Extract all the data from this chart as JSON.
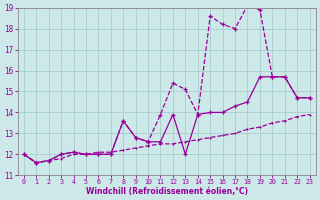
{
  "background_color": "#cce8e8",
  "grid_color": "#b0d0d0",
  "line_color": "#990099",
  "xlabel": "Windchill (Refroidissement éolien,°C)",
  "xlabel_color": "#990099",
  "tick_color": "#990099",
  "xlim": [
    -0.5,
    23.5
  ],
  "ylim": [
    11,
    19
  ],
  "yticks": [
    11,
    12,
    13,
    14,
    15,
    16,
    17,
    18,
    19
  ],
  "xticks": [
    0,
    1,
    2,
    3,
    4,
    5,
    6,
    7,
    8,
    9,
    10,
    11,
    12,
    13,
    14,
    15,
    16,
    17,
    18,
    19,
    20,
    21,
    22,
    23
  ],
  "line_bottom_x": [
    0,
    1,
    2,
    3,
    4,
    5,
    6,
    7,
    8,
    9,
    10,
    11,
    12,
    13,
    14,
    15,
    16,
    17,
    18,
    19,
    20,
    21,
    22,
    23
  ],
  "line_bottom_y": [
    12.0,
    11.6,
    11.7,
    11.8,
    12.0,
    12.0,
    12.1,
    12.1,
    12.2,
    12.3,
    12.4,
    12.5,
    12.5,
    12.6,
    12.7,
    12.8,
    12.9,
    13.0,
    13.2,
    13.3,
    13.5,
    13.6,
    13.8,
    13.9
  ],
  "line_mid_x": [
    0,
    1,
    2,
    3,
    4,
    5,
    6,
    7,
    8,
    9,
    10,
    11,
    12,
    13,
    14,
    15,
    16,
    17,
    18,
    19,
    20,
    21,
    22,
    23
  ],
  "line_mid_y": [
    12.0,
    11.6,
    11.7,
    12.0,
    12.1,
    12.0,
    12.0,
    12.0,
    13.6,
    12.8,
    12.6,
    12.6,
    13.9,
    12.0,
    13.9,
    14.0,
    14.0,
    14.3,
    14.5,
    15.7,
    15.7,
    15.7,
    14.7,
    14.7
  ],
  "line_top_x": [
    0,
    1,
    2,
    3,
    4,
    5,
    6,
    7,
    8,
    9,
    10,
    11,
    12,
    13,
    14,
    15,
    16,
    17,
    18,
    19,
    20,
    21,
    22,
    23
  ],
  "line_top_y": [
    12.0,
    11.6,
    11.7,
    12.0,
    12.1,
    12.0,
    12.0,
    12.0,
    13.6,
    12.8,
    12.6,
    13.9,
    15.4,
    15.1,
    13.9,
    18.6,
    18.2,
    18.0,
    19.1,
    18.9,
    15.7,
    15.7,
    14.7,
    14.7
  ]
}
